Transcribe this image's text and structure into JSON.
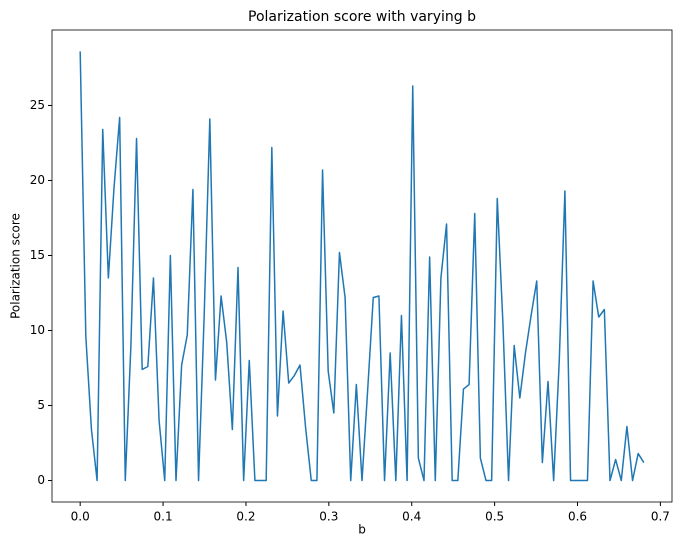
{
  "chart_data": {
    "type": "line",
    "title": "Polarization score with varying b",
    "xlabel": "b",
    "ylabel": "Polarization score",
    "x": [
      0,
      0.0068,
      0.0136,
      0.0204,
      0.0272,
      0.034,
      0.0408,
      0.0476,
      0.0544,
      0.0612,
      0.068,
      0.0748,
      0.0816,
      0.0884,
      0.0952,
      0.102,
      0.1088,
      0.1156,
      0.1224,
      0.1292,
      0.136,
      0.1428,
      0.1496,
      0.1564,
      0.1632,
      0.17,
      0.1768,
      0.1836,
      0.1904,
      0.1972,
      0.204,
      0.2108,
      0.2176,
      0.2244,
      0.2312,
      0.238,
      0.2448,
      0.2516,
      0.2584,
      0.2652,
      0.272,
      0.2788,
      0.2856,
      0.2924,
      0.2992,
      0.306,
      0.3128,
      0.3196,
      0.3264,
      0.3332,
      0.34,
      0.3468,
      0.3536,
      0.3604,
      0.3672,
      0.374,
      0.3808,
      0.3876,
      0.3944,
      0.4012,
      0.408,
      0.4148,
      0.4216,
      0.4284,
      0.4352,
      0.442,
      0.4488,
      0.4556,
      0.4624,
      0.4692,
      0.476,
      0.4828,
      0.4896,
      0.4964,
      0.5032,
      0.51,
      0.5168,
      0.5236,
      0.5304,
      0.5372,
      0.544,
      0.5508,
      0.5576,
      0.5644,
      0.5712,
      0.578,
      0.5848,
      0.5916,
      0.5984,
      0.6052,
      0.612,
      0.6188,
      0.6256,
      0.6324,
      0.6392,
      0.646,
      0.6528,
      0.6596,
      0.6664,
      0.6732,
      0.68
    ],
    "series": [
      {
        "color": "#1f77b4",
        "values": [
          28.6,
          9.6,
          3.4,
          0,
          23.4,
          13.5,
          19.5,
          24.2,
          0,
          9,
          22.8,
          7.4,
          7.6,
          13.5,
          4,
          0,
          15,
          0,
          7.7,
          9.7,
          19.4,
          0,
          11,
          24.1,
          6.7,
          12.3,
          9.2,
          3.4,
          14.2,
          0,
          8,
          0,
          0,
          0,
          22.2,
          4.3,
          11.3,
          6.5,
          7,
          7.7,
          3.5,
          0,
          0,
          20.7,
          7.3,
          4.5,
          15.2,
          12.2,
          0,
          6.4,
          0,
          6,
          12.2,
          12.3,
          0,
          8.5,
          0,
          11,
          0,
          26.3,
          1.5,
          0,
          14.9,
          0,
          13.5,
          17.1,
          0,
          0,
          6.1,
          6.4,
          17.8,
          1.5,
          0,
          0,
          18.8,
          10.5,
          0,
          9,
          5.5,
          8.5,
          11,
          13.3,
          1.2,
          6.6,
          0,
          8,
          19.3,
          0,
          0,
          0,
          0,
          13.3,
          10.9,
          11.4,
          0,
          1.4,
          0,
          3.6,
          0,
          1.8,
          1.2
        ]
      }
    ],
    "xlim": [
      -0.034,
      0.714
    ],
    "xticks": [
      {
        "value": 0,
        "label": "0.0"
      },
      0.1,
      0.2,
      0.3,
      0.4,
      0.5,
      0.6,
      0.7
    ],
    "ylim": [
      -1.43,
      30.03
    ],
    "yticks": [
      0,
      5,
      10,
      15,
      20,
      25
    ],
    "grid": false
  }
}
